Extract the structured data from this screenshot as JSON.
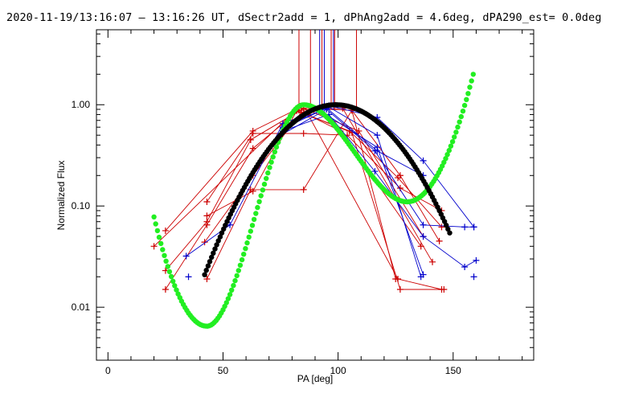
{
  "chart_data": {
    "type": "scatter",
    "title": "2020-11-19/13:16:07 – 13:16:26 UT, dSectr2add = 1, dPhAng2add = 4.6deg, dPA290_est=  0.0deg",
    "xlabel": "PA [deg]",
    "ylabel": "Normalized Flux",
    "xlim": [
      -5,
      185
    ],
    "ylim": [
      0.003,
      5.5
    ],
    "yscale": "log",
    "x_ticks": [
      0,
      50,
      100,
      150
    ],
    "x_tick_labels": [
      "0",
      "50",
      "100",
      "150"
    ],
    "y_ticks": [
      0.01,
      0.1,
      1.0
    ],
    "y_tick_labels": [
      "0.01",
      "0.10",
      "1.00"
    ],
    "colors": {
      "red": "#cc0000",
      "blue": "#0000cc",
      "green": "#22ee22",
      "black": "#000000"
    },
    "vertical_markers": [
      {
        "x": 83,
        "color": "red"
      },
      {
        "x": 88,
        "color": "red"
      },
      {
        "x": 92,
        "color": "blue"
      },
      {
        "x": 93,
        "color": "red"
      },
      {
        "x": 94,
        "color": "blue"
      },
      {
        "x": 97,
        "color": "red"
      },
      {
        "x": 98,
        "color": "blue"
      },
      {
        "x": 98.5,
        "color": "red"
      },
      {
        "x": 108,
        "color": "red"
      }
    ],
    "series": [
      {
        "name": "red-1",
        "color": "red",
        "x": [
          20,
          83,
          87,
          126,
          145
        ],
        "y": [
          0.04,
          0.95,
          0.8,
          0.019,
          0.015
        ]
      },
      {
        "name": "red-2",
        "color": "red",
        "x": [
          25,
          63,
          82,
          101,
          136
        ],
        "y": [
          0.057,
          0.55,
          0.9,
          0.55,
          0.04
        ]
      },
      {
        "name": "red-3",
        "color": "red",
        "x": [
          25,
          43,
          62,
          85,
          109,
          137
        ],
        "y": [
          0.023,
          0.07,
          0.45,
          0.92,
          0.55,
          0.05
        ]
      },
      {
        "name": "red-4",
        "color": "red",
        "x": [
          25,
          43,
          63,
          83,
          102,
          141
        ],
        "y": [
          0.015,
          0.065,
          0.37,
          0.88,
          0.92,
          0.028
        ]
      },
      {
        "name": "red-5",
        "color": "red",
        "x": [
          43,
          63,
          85,
          104,
          127,
          145
        ],
        "y": [
          0.11,
          0.52,
          0.52,
          0.5,
          0.15,
          0.09
        ]
      },
      {
        "name": "red-6",
        "color": "red",
        "x": [
          43,
          63,
          82,
          105,
          126,
          145
        ],
        "y": [
          0.08,
          0.14,
          0.87,
          0.55,
          0.19,
          0.062
        ]
      },
      {
        "name": "red-7",
        "color": "red",
        "x": [
          43,
          62,
          85,
          106,
          125
        ],
        "y": [
          0.019,
          0.145,
          0.145,
          0.88,
          0.019
        ]
      },
      {
        "name": "red-8",
        "color": "red",
        "x": [
          42,
          63,
          84,
          106,
          127,
          146
        ],
        "y": [
          0.044,
          0.2,
          0.84,
          0.53,
          0.015,
          0.015
        ]
      },
      {
        "name": "red-9",
        "color": "red",
        "x": [
          62,
          85,
          106,
          127,
          144
        ],
        "y": [
          0.45,
          0.92,
          0.88,
          0.2,
          0.045
        ]
      },
      {
        "name": "blue-1",
        "color": "blue",
        "x": [
          34,
          53,
          76,
          96,
          117,
          137,
          159
        ],
        "y": [
          0.032,
          0.065,
          0.65,
          0.98,
          0.75,
          0.28,
          0.062
        ]
      },
      {
        "name": "blue-2",
        "color": "blue",
        "x": [
          75,
          95,
          116,
          137,
          155,
          159
        ],
        "y": [
          0.5,
          0.9,
          0.35,
          0.065,
          0.062,
          0.062
        ]
      },
      {
        "name": "blue-3",
        "color": "blue",
        "x": [
          76,
          96,
          116,
          137,
          155,
          160
        ],
        "y": [
          0.55,
          0.8,
          0.22,
          0.05,
          0.025,
          0.029
        ]
      },
      {
        "name": "blue-4",
        "color": "blue",
        "x": [
          76,
          96,
          117,
          136
        ],
        "y": [
          0.58,
          0.95,
          0.5,
          0.02
        ]
      },
      {
        "name": "blue-5",
        "color": "blue",
        "x": [
          76,
          95,
          117,
          137
        ],
        "y": [
          0.6,
          0.93,
          0.35,
          0.2
        ]
      },
      {
        "name": "blue-6",
        "color": "blue",
        "x": [
          93,
          117,
          137
        ],
        "y": [
          0.85,
          0.38,
          0.021
        ]
      }
    ],
    "unconnected_points": [
      {
        "color": "blue",
        "x": 35,
        "y": 0.02
      },
      {
        "color": "blue",
        "x": 159,
        "y": 0.02
      }
    ],
    "curves": [
      {
        "name": "green-model",
        "color": "green",
        "generator": "green_model",
        "x_range": [
          20,
          159
        ],
        "min": {
          "x": 43,
          "y": 0.0065
        },
        "peak": {
          "x": 85,
          "y": 1.0
        },
        "valley": {
          "x": 130,
          "y": 0.11
        },
        "end": {
          "x": 159,
          "y": 2.1
        }
      },
      {
        "name": "black-model",
        "color": "black",
        "generator": "gaussian",
        "center": 99,
        "peak": 1.0,
        "sigma": 20.5,
        "x_range": [
          42,
          149
        ]
      }
    ]
  }
}
